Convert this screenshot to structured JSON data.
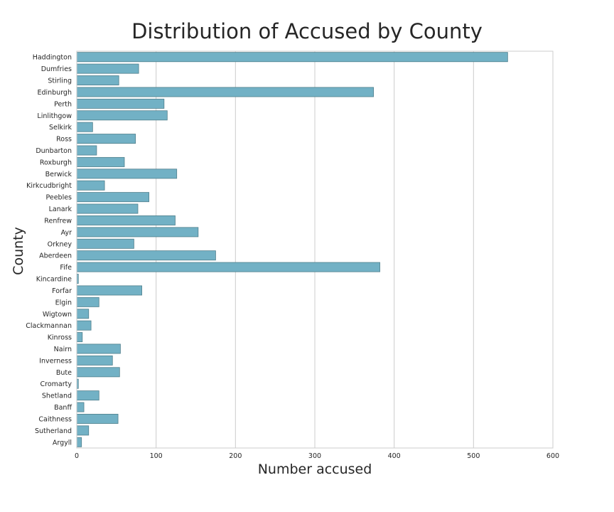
{
  "chart_data": {
    "type": "bar",
    "orientation": "horizontal",
    "title": "Distribution of Accused by County",
    "xlabel": "Number accused",
    "ylabel": "County",
    "xlim": [
      0,
      600
    ],
    "xticks": [
      0,
      100,
      200,
      300,
      400,
      500,
      600
    ],
    "grid": true,
    "bar_color": "#72b1c5",
    "categories": [
      "Haddington",
      "Dumfries",
      "Stirling",
      "Edinburgh",
      "Perth",
      "Linlithgow",
      "Selkirk",
      "Ross",
      "Dunbarton",
      "Roxburgh",
      "Berwick",
      "Kirkcudbright",
      "Peebles",
      "Lanark",
      "Renfrew",
      "Ayr",
      "Orkney",
      "Aberdeen",
      "Fife",
      "Kincardine",
      "Forfar",
      "Elgin",
      "Wigtown",
      "Clackmannan",
      "Kinross",
      "Nairn",
      "Inverness",
      "Bute",
      "Cromarty",
      "Shetland",
      "Banff",
      "Caithness",
      "Sutherland",
      "Argyll"
    ],
    "values": [
      543,
      78,
      53,
      374,
      110,
      114,
      20,
      74,
      25,
      60,
      126,
      35,
      91,
      77,
      124,
      153,
      72,
      175,
      382,
      2,
      82,
      28,
      15,
      18,
      7,
      55,
      45,
      54,
      2,
      28,
      9,
      52,
      15,
      6
    ]
  }
}
